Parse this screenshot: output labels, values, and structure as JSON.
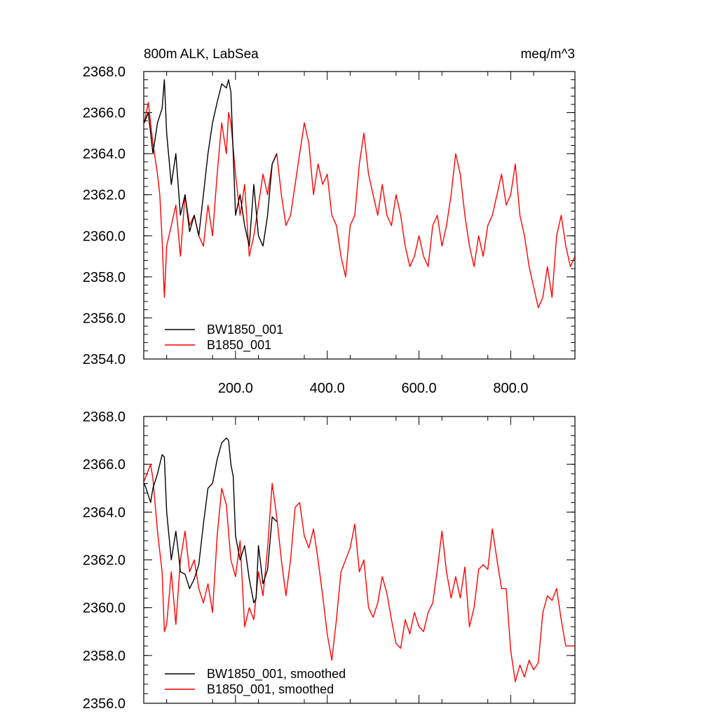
{
  "colors": {
    "series_0": "#000000",
    "series_1": "#ff0000",
    "axis": "#000000",
    "background": "#ffffff"
  },
  "chart_data": [
    {
      "type": "line",
      "title_left": "800m ALK, LabSea",
      "title_right": "meq/m^3",
      "xlim": [
        0,
        940
      ],
      "ylim": [
        2354,
        2368
      ],
      "x_major_ticks": [
        200,
        400,
        600,
        800
      ],
      "x_tick_labels": [
        "200.0",
        "400.0",
        "600.0",
        "800.0"
      ],
      "y_major_ticks": [
        2354,
        2356,
        2358,
        2360,
        2362,
        2364,
        2366,
        2368
      ],
      "y_tick_labels": [
        "2354.0",
        "2356.0",
        "2358.0",
        "2360.0",
        "2362.0",
        "2364.0",
        "2366.0",
        "2368.0"
      ],
      "grid": false,
      "legend_position": "bottom-left",
      "series": [
        {
          "name": "BW1850_001",
          "color": "#000000",
          "x": [
            1,
            10,
            20,
            30,
            40,
            45,
            50,
            60,
            70,
            80,
            90,
            100,
            110,
            120,
            130,
            140,
            150,
            160,
            170,
            180,
            185,
            190,
            200,
            210,
            220,
            230,
            240,
            250,
            260,
            270,
            280,
            290
          ],
          "y": [
            2365.5,
            2366.0,
            2364.0,
            2365.5,
            2366.2,
            2367.6,
            2365.0,
            2362.5,
            2364.0,
            2361.0,
            2362.0,
            2360.2,
            2361.0,
            2360.0,
            2362.0,
            2364.0,
            2365.5,
            2366.5,
            2367.4,
            2367.2,
            2367.6,
            2367.0,
            2361.0,
            2362.0,
            2360.5,
            2359.5,
            2362.5,
            2360.0,
            2359.5,
            2361.0,
            2363.5,
            2364.0
          ]
        },
        {
          "name": "B1850_001",
          "color": "#ff0000",
          "x": [
            1,
            10,
            20,
            30,
            35,
            40,
            45,
            50,
            60,
            70,
            80,
            90,
            100,
            110,
            120,
            130,
            140,
            150,
            160,
            170,
            180,
            185,
            190,
            200,
            210,
            220,
            230,
            240,
            250,
            260,
            270,
            280,
            290,
            300,
            310,
            320,
            330,
            340,
            350,
            360,
            370,
            380,
            390,
            400,
            410,
            420,
            430,
            440,
            450,
            460,
            470,
            480,
            490,
            500,
            510,
            520,
            530,
            540,
            550,
            560,
            570,
            580,
            590,
            600,
            610,
            620,
            630,
            640,
            650,
            660,
            670,
            680,
            690,
            700,
            710,
            720,
            730,
            740,
            750,
            760,
            770,
            780,
            790,
            800,
            810,
            820,
            830,
            840,
            850,
            860,
            870,
            880,
            890,
            900,
            910,
            920,
            930,
            940
          ],
          "y": [
            2365.5,
            2366.5,
            2364.5,
            2363.0,
            2362.0,
            2359.8,
            2357.0,
            2359.5,
            2360.5,
            2361.5,
            2359.0,
            2362.0,
            2360.5,
            2361.0,
            2360.0,
            2359.5,
            2361.5,
            2360.0,
            2363.0,
            2365.5,
            2364.0,
            2366.0,
            2365.5,
            2363.0,
            2361.0,
            2362.5,
            2359.0,
            2360.0,
            2361.5,
            2363.0,
            2362.0,
            2363.5,
            2364.0,
            2362.0,
            2360.5,
            2361.0,
            2362.5,
            2364.0,
            2365.5,
            2364.5,
            2362.0,
            2363.5,
            2362.5,
            2363.0,
            2361.0,
            2360.5,
            2359.0,
            2358.0,
            2360.5,
            2361.0,
            2363.5,
            2365.0,
            2363.0,
            2362.0,
            2361.0,
            2362.5,
            2361.0,
            2360.5,
            2362.0,
            2361.0,
            2359.5,
            2358.5,
            2359.0,
            2360.0,
            2359.0,
            2358.5,
            2360.5,
            2361.0,
            2359.5,
            2360.5,
            2362.0,
            2364.0,
            2363.0,
            2361.0,
            2359.5,
            2358.5,
            2360.0,
            2359.0,
            2360.5,
            2361.0,
            2362.0,
            2363.0,
            2361.5,
            2362.0,
            2363.5,
            2361.0,
            2360.0,
            2358.5,
            2357.5,
            2356.5,
            2357.0,
            2358.5,
            2357.0,
            2360.0,
            2361.0,
            2359.5,
            2358.5,
            2359.0
          ]
        }
      ]
    },
    {
      "type": "line",
      "xlim": [
        0,
        940
      ],
      "ylim": [
        2356,
        2368
      ],
      "x_major_ticks": [
        200,
        400,
        600,
        800
      ],
      "y_major_ticks": [
        2356,
        2358,
        2360,
        2362,
        2364,
        2366,
        2368
      ],
      "y_tick_labels": [
        "2356.0",
        "2358.0",
        "2360.0",
        "2362.0",
        "2364.0",
        "2366.0",
        "2368.0"
      ],
      "grid": false,
      "legend_position": "bottom-left",
      "series": [
        {
          "name": "BW1850_001, smoothed",
          "color": "#000000",
          "x": [
            1,
            5,
            15,
            20,
            30,
            40,
            45,
            50,
            60,
            70,
            75,
            80,
            90,
            100,
            110,
            120,
            130,
            140,
            150,
            160,
            170,
            180,
            185,
            190,
            195,
            200,
            210,
            220,
            230,
            240,
            245,
            250,
            260,
            270,
            280,
            290
          ],
          "y": [
            2365.2,
            2365.0,
            2364.4,
            2365.0,
            2365.6,
            2366.4,
            2366.3,
            2364.0,
            2362.0,
            2363.2,
            2362.4,
            2361.5,
            2361.4,
            2360.8,
            2361.2,
            2361.8,
            2363.5,
            2365.0,
            2365.2,
            2366.2,
            2366.9,
            2367.1,
            2367.0,
            2366.0,
            2365.5,
            2363.0,
            2362.0,
            2362.6,
            2361.2,
            2360.2,
            2360.4,
            2362.6,
            2361.0,
            2361.6,
            2363.8,
            2363.6
          ]
        },
        {
          "name": "B1850_001, smoothed",
          "color": "#ff0000",
          "x": [
            1,
            15,
            20,
            30,
            40,
            45,
            50,
            60,
            70,
            80,
            90,
            100,
            110,
            120,
            130,
            140,
            150,
            160,
            170,
            180,
            190,
            200,
            210,
            220,
            230,
            240,
            250,
            260,
            270,
            280,
            290,
            300,
            310,
            320,
            330,
            340,
            350,
            360,
            370,
            380,
            390,
            400,
            410,
            420,
            430,
            440,
            450,
            460,
            470,
            480,
            490,
            500,
            510,
            520,
            530,
            540,
            550,
            560,
            570,
            580,
            590,
            600,
            610,
            620,
            630,
            640,
            650,
            660,
            670,
            680,
            690,
            700,
            710,
            720,
            730,
            740,
            750,
            760,
            770,
            780,
            790,
            800,
            810,
            820,
            830,
            840,
            850,
            860,
            870,
            880,
            890,
            900,
            910,
            920,
            930,
            940
          ],
          "y": [
            2365.3,
            2366.0,
            2365.4,
            2363.2,
            2361.5,
            2359.0,
            2359.3,
            2361.5,
            2359.3,
            2362.0,
            2363.2,
            2361.5,
            2362.0,
            2360.8,
            2360.2,
            2361.0,
            2359.8,
            2363.0,
            2365.0,
            2364.3,
            2362.0,
            2361.3,
            2362.8,
            2359.2,
            2360.0,
            2359.5,
            2361.5,
            2360.5,
            2362.5,
            2365.2,
            2363.8,
            2362.0,
            2360.5,
            2362.0,
            2364.2,
            2364.4,
            2363.0,
            2362.5,
            2363.3,
            2362.0,
            2360.5,
            2358.9,
            2357.8,
            2359.5,
            2361.5,
            2362.0,
            2362.5,
            2363.5,
            2361.5,
            2362.0,
            2360.0,
            2359.6,
            2360.2,
            2361.3,
            2360.6,
            2359.5,
            2358.5,
            2358.3,
            2359.5,
            2358.9,
            2359.8,
            2359.2,
            2359.0,
            2359.8,
            2360.2,
            2361.6,
            2363.2,
            2361.5,
            2360.4,
            2361.3,
            2360.4,
            2361.7,
            2359.2,
            2360.0,
            2361.6,
            2361.8,
            2361.6,
            2363.3,
            2362.0,
            2360.8,
            2360.8,
            2358.2,
            2356.9,
            2357.6,
            2357.1,
            2357.8,
            2357.4,
            2357.7,
            2359.8,
            2360.5,
            2360.3,
            2360.8,
            2359.5,
            2358.4,
            2358.4,
            2358.4
          ]
        }
      ]
    }
  ]
}
